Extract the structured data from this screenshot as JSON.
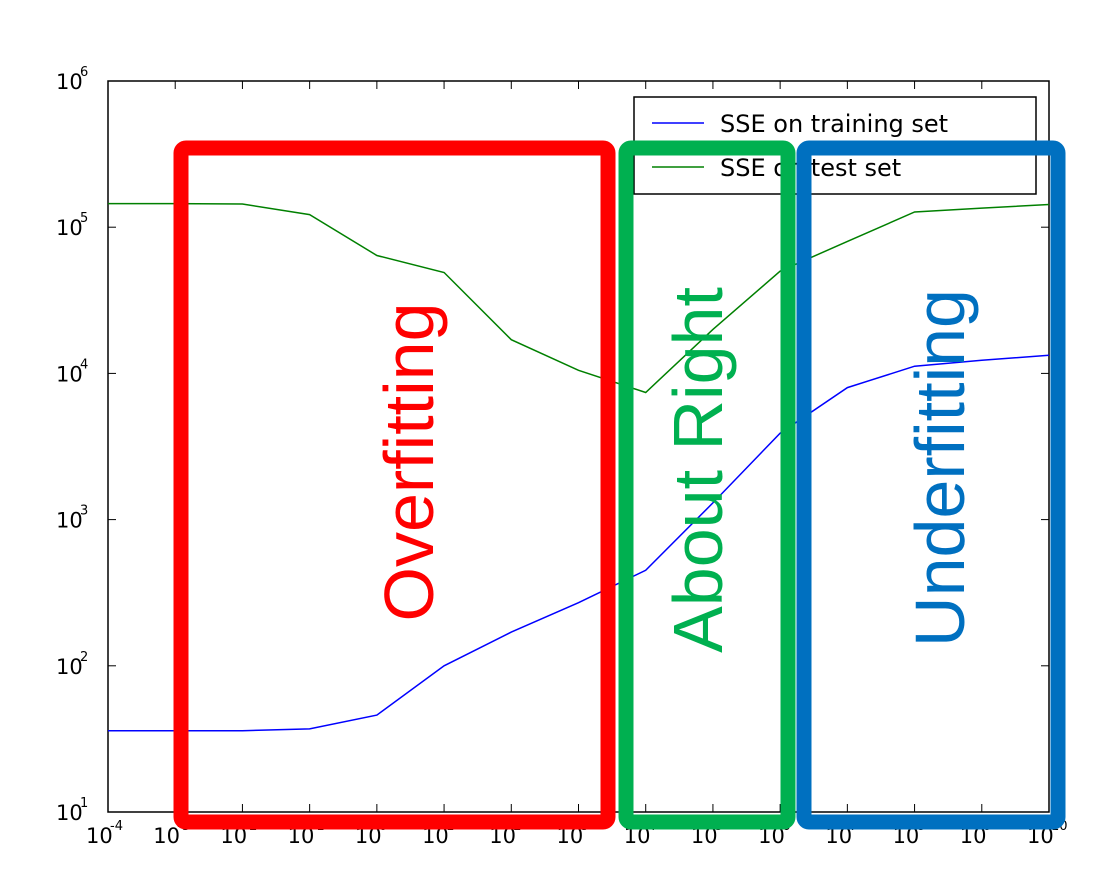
{
  "chart_data": {
    "type": "line",
    "title": "",
    "xlabel": "",
    "ylabel": "",
    "xscale": "log",
    "yscale": "log",
    "xlim": [
      0.0001,
      10000000000
    ],
    "ylim": [
      10,
      1000000
    ],
    "x_tick_exponents": [
      -4,
      -3,
      -2,
      -1,
      0,
      1,
      2,
      3,
      4,
      5,
      6,
      7,
      8,
      9,
      10
    ],
    "y_tick_exponents": [
      1,
      2,
      3,
      4,
      5,
      6
    ],
    "tick_base": "10",
    "legend": {
      "location": "top-right",
      "entries": [
        "SSE on training set",
        "SSE on test set"
      ]
    },
    "series": [
      {
        "name": "SSE on training set",
        "color": "#0000ff",
        "x": [
          0.0001,
          0.001,
          0.01,
          0.1,
          1,
          10,
          100,
          1000,
          10000,
          100000,
          1000000,
          10000000,
          100000000,
          1000000000,
          10000000000
        ],
        "y": [
          36,
          36,
          36,
          37,
          46,
          100,
          170,
          270,
          450,
          1300,
          3900,
          8000,
          11200,
          12300,
          13300
        ]
      },
      {
        "name": "SSE on test set",
        "color": "#008000",
        "x": [
          0.0001,
          0.001,
          0.01,
          0.1,
          1,
          10,
          100,
          1000,
          10000,
          100000,
          1000000,
          10000000,
          100000000,
          1000000000,
          10000000000
        ],
        "y": [
          145000,
          145000,
          144000,
          122000,
          64000,
          49000,
          17000,
          10500,
          7400,
          20000,
          50000,
          80000,
          127000,
          135000,
          143000
        ]
      }
    ],
    "annotations": [
      {
        "text": "Overfitting",
        "color": "#ff0000"
      },
      {
        "text": "About Right",
        "color": "#00b050"
      },
      {
        "text": "Underfitting",
        "color": "#0070c0"
      }
    ]
  }
}
